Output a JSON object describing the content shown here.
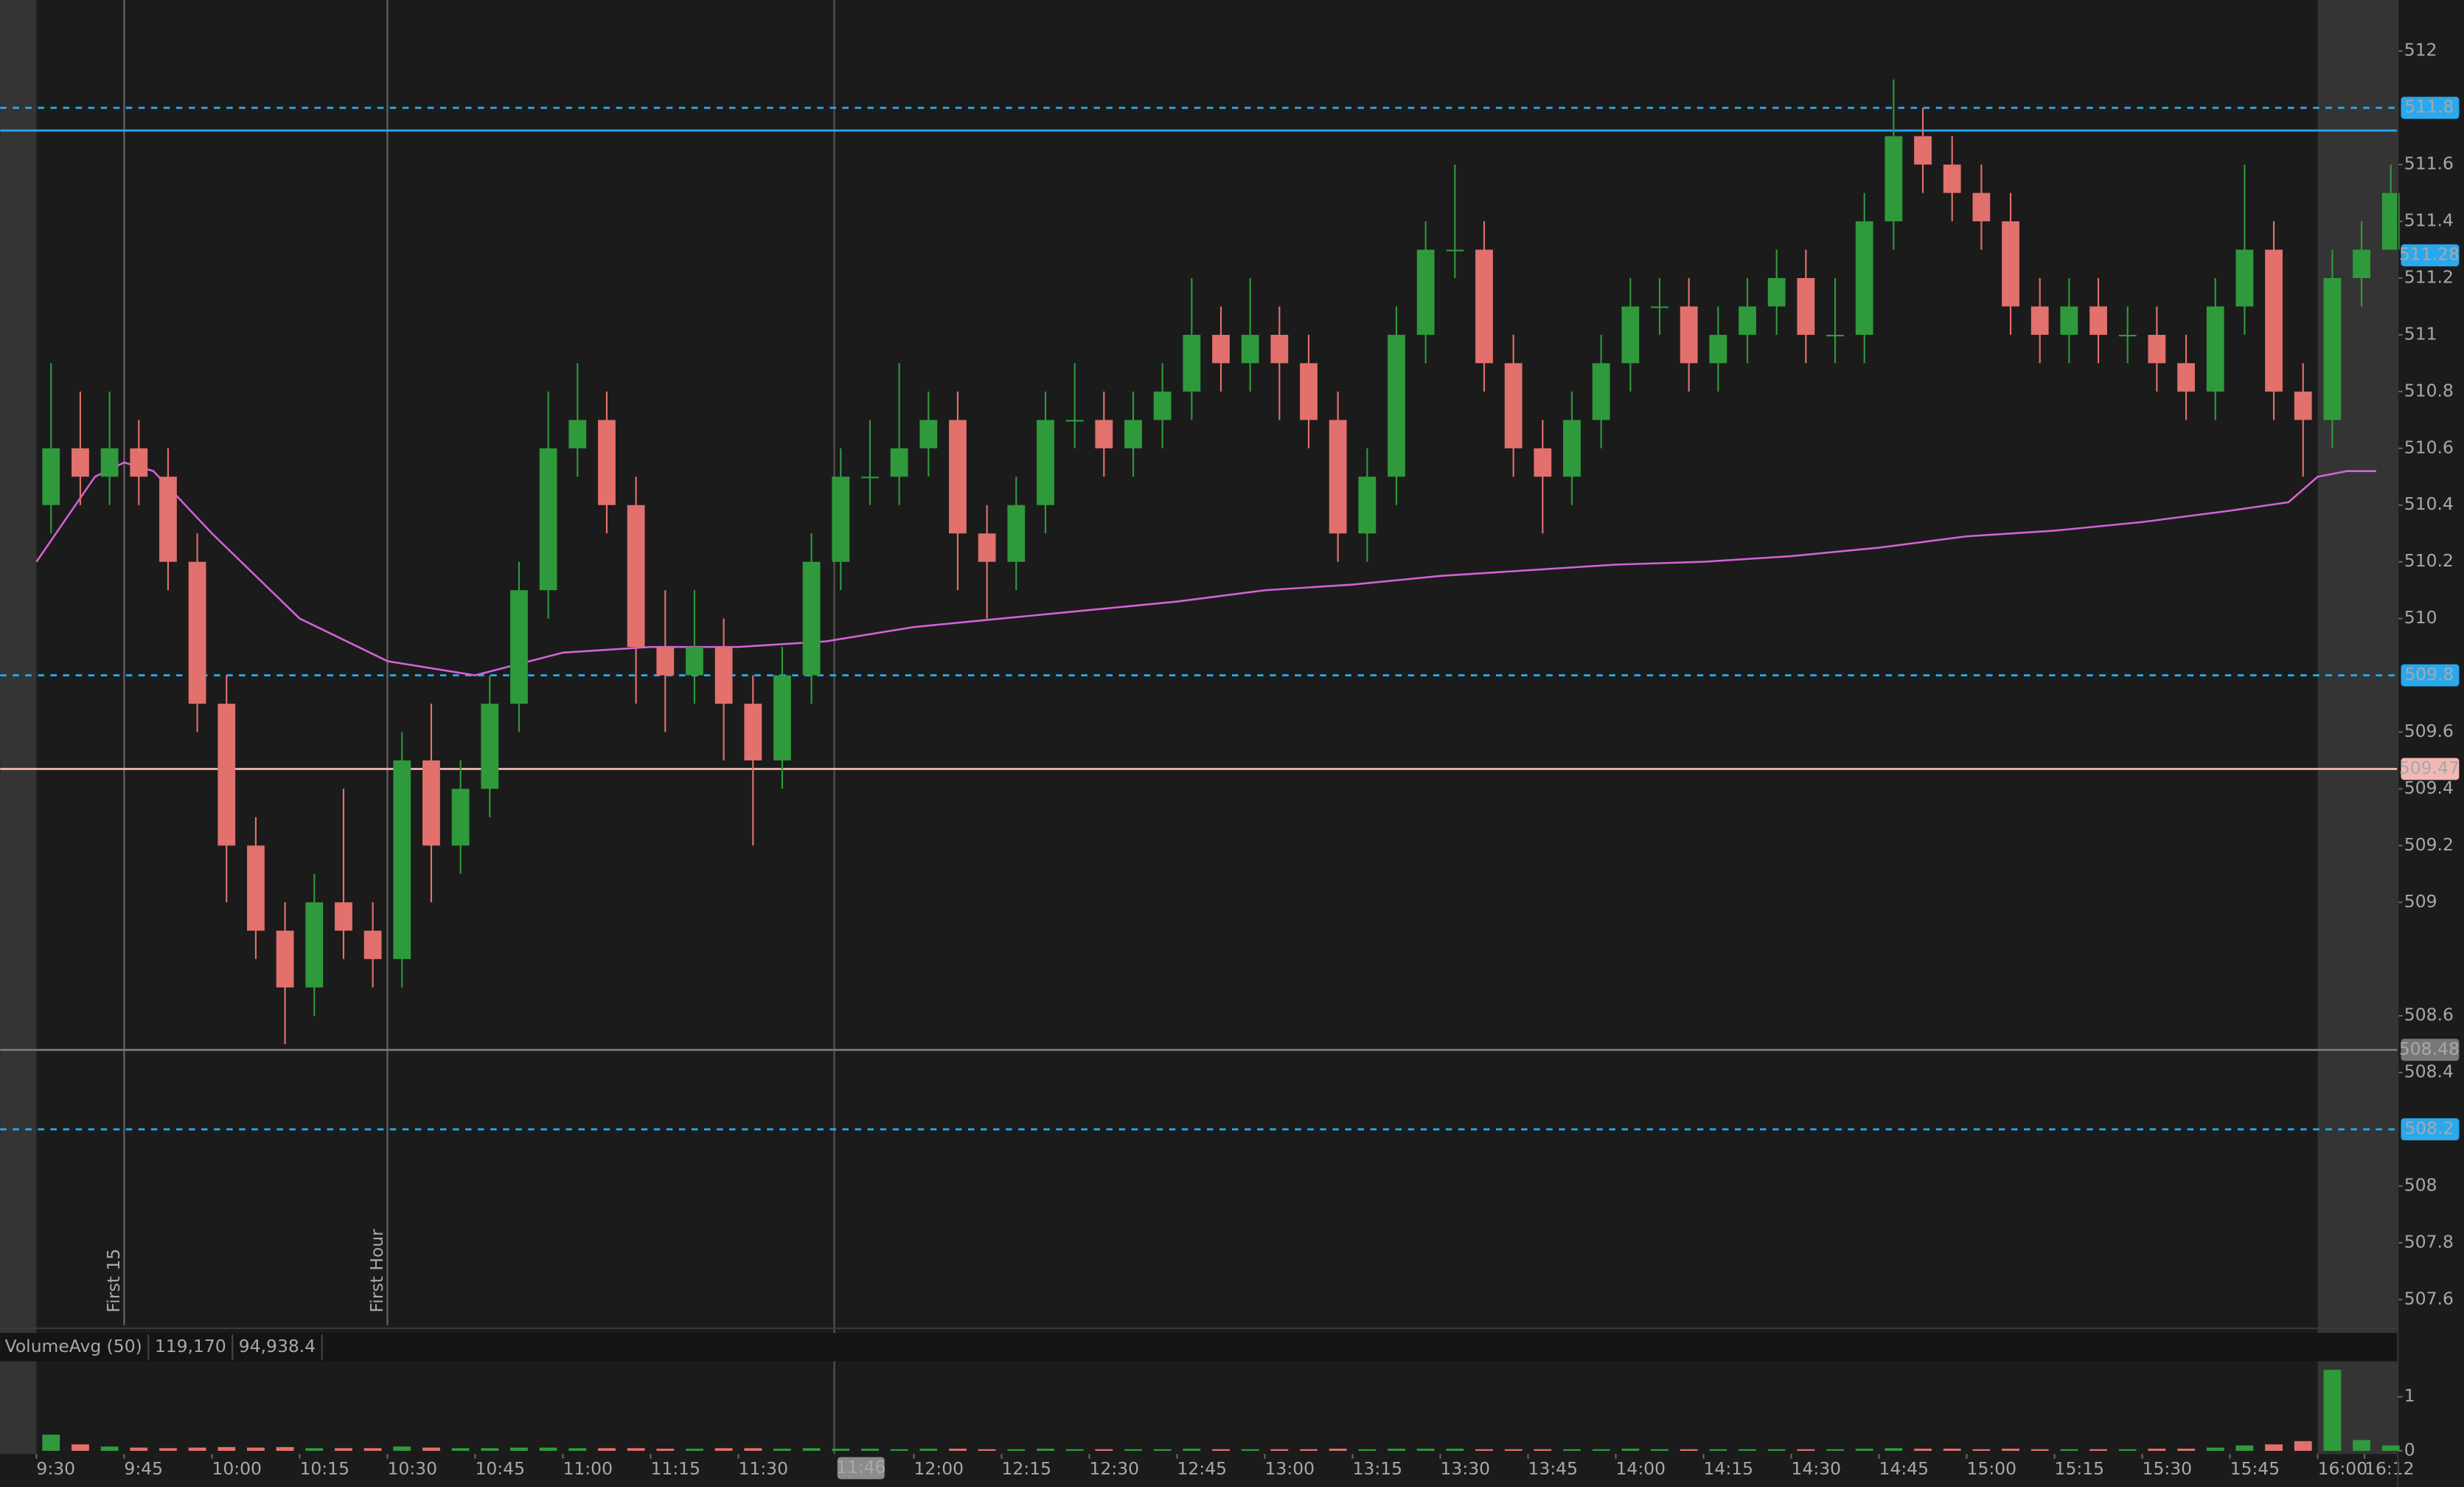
{
  "chart_data": {
    "type": "candlestick",
    "x": [
      0,
      5,
      10,
      15,
      20,
      25,
      30,
      35,
      40,
      45,
      50,
      55,
      60,
      65,
      70,
      75,
      80,
      85,
      90,
      95,
      100,
      105,
      110,
      115,
      120,
      125,
      130,
      135,
      140,
      145,
      150,
      155,
      160,
      165,
      170,
      175,
      180,
      185,
      190,
      195,
      200,
      205,
      210,
      215,
      220,
      225,
      230,
      235,
      240,
      245,
      250,
      255,
      260,
      265,
      270,
      275,
      280,
      285,
      290,
      295,
      300,
      305,
      310,
      315,
      320,
      325,
      330,
      335,
      340,
      345,
      350,
      355,
      360,
      365,
      370,
      375,
      380,
      385,
      390,
      395,
      400
    ],
    "open": [
      510.4,
      510.6,
      510.5,
      510.6,
      510.5,
      510.2,
      509.7,
      509.2,
      508.9,
      508.7,
      509.0,
      508.9,
      508.8,
      509.5,
      509.2,
      509.4,
      509.7,
      510.1,
      510.6,
      510.7,
      510.4,
      509.9,
      509.8,
      509.9,
      509.7,
      509.5,
      509.8,
      510.2,
      510.5,
      510.5,
      510.6,
      510.7,
      510.3,
      510.2,
      510.4,
      510.7,
      510.7,
      510.6,
      510.7,
      510.8,
      511.0,
      510.9,
      511.0,
      510.9,
      510.7,
      510.3,
      510.5,
      511.0,
      511.3,
      511.3,
      510.9,
      510.6,
      510.5,
      510.7,
      510.9,
      511.1,
      511.1,
      510.9,
      511.0,
      511.1,
      511.2,
      511.0,
      511.0,
      511.4,
      511.7,
      511.6,
      511.5,
      511.4,
      511.1,
      511.0,
      511.1,
      511.0,
      511.0,
      510.9,
      510.8,
      511.1,
      511.3,
      510.8,
      510.7,
      511.2,
      511.3
    ],
    "high": [
      510.9,
      510.8,
      510.8,
      510.7,
      510.6,
      510.3,
      509.8,
      509.3,
      509.0,
      509.1,
      509.4,
      509.0,
      509.6,
      509.7,
      509.5,
      509.8,
      510.2,
      510.8,
      510.9,
      510.8,
      510.5,
      510.1,
      510.1,
      510.0,
      509.8,
      509.9,
      510.3,
      510.6,
      510.7,
      510.9,
      510.8,
      510.8,
      510.4,
      510.5,
      510.8,
      510.9,
      510.8,
      510.8,
      510.9,
      511.2,
      511.1,
      511.2,
      511.1,
      511.0,
      510.8,
      510.6,
      511.1,
      511.4,
      511.6,
      511.4,
      511.0,
      510.7,
      510.8,
      511.0,
      511.2,
      511.2,
      511.2,
      511.1,
      511.2,
      511.3,
      511.3,
      511.2,
      511.5,
      511.9,
      511.8,
      511.7,
      511.6,
      511.5,
      511.2,
      511.2,
      511.2,
      511.1,
      511.1,
      511.0,
      511.2,
      511.6,
      511.4,
      510.9,
      511.3,
      511.4,
      511.6
    ],
    "low": [
      510.3,
      510.4,
      510.4,
      510.4,
      510.1,
      509.6,
      509.0,
      508.8,
      508.5,
      508.6,
      508.8,
      508.7,
      508.7,
      509.0,
      509.1,
      509.3,
      509.6,
      510.0,
      510.5,
      510.3,
      509.7,
      509.6,
      509.7,
      509.5,
      509.2,
      509.4,
      509.7,
      510.1,
      510.4,
      510.4,
      510.5,
      510.1,
      510.0,
      510.1,
      510.3,
      510.6,
      510.5,
      510.5,
      510.6,
      510.7,
      510.8,
      510.8,
      510.7,
      510.6,
      510.2,
      510.2,
      510.4,
      510.9,
      511.2,
      510.8,
      510.5,
      510.3,
      510.4,
      510.6,
      510.8,
      511.0,
      510.8,
      510.8,
      510.9,
      511.0,
      510.9,
      510.9,
      510.9,
      511.3,
      511.5,
      511.4,
      511.3,
      511.0,
      510.9,
      510.9,
      510.9,
      510.9,
      510.8,
      510.7,
      510.7,
      511.0,
      510.7,
      510.5,
      510.6,
      511.1,
      511.3
    ],
    "close": [
      510.6,
      510.5,
      510.6,
      510.5,
      510.2,
      509.7,
      509.2,
      508.9,
      508.7,
      509.0,
      508.9,
      508.8,
      509.5,
      509.2,
      509.4,
      509.7,
      510.1,
      510.6,
      510.7,
      510.4,
      509.9,
      509.8,
      509.9,
      509.7,
      509.5,
      509.8,
      510.2,
      510.5,
      510.5,
      510.6,
      510.7,
      510.3,
      510.2,
      510.4,
      510.7,
      510.7,
      510.6,
      510.7,
      510.8,
      511.0,
      510.9,
      511.0,
      510.9,
      510.7,
      510.3,
      510.5,
      511.0,
      511.3,
      511.3,
      510.9,
      510.6,
      510.5,
      510.7,
      510.9,
      511.1,
      511.1,
      510.9,
      511.0,
      511.1,
      511.2,
      511.0,
      511.0,
      511.4,
      511.7,
      511.6,
      511.5,
      511.4,
      511.1,
      511.0,
      511.1,
      511.0,
      511.0,
      510.9,
      510.8,
      511.1,
      511.3,
      510.8,
      510.7,
      511.2,
      511.3,
      511.5
    ],
    "up_color": "#2f9a3c",
    "down_color": "#e2706c",
    "ma": {
      "color": "#d463d8",
      "x": [
        0,
        10,
        15,
        20,
        30,
        45,
        60,
        75,
        90,
        105,
        120,
        135,
        150,
        165,
        180,
        195,
        210,
        225,
        240,
        255,
        270,
        285,
        300,
        315,
        330,
        345,
        360,
        375,
        385,
        390,
        395,
        400
      ],
      "values": [
        510.2,
        510.5,
        510.55,
        510.52,
        510.3,
        510.0,
        509.85,
        509.8,
        509.88,
        509.9,
        509.9,
        509.92,
        509.97,
        510.0,
        510.03,
        510.06,
        510.1,
        510.12,
        510.15,
        510.17,
        510.19,
        510.2,
        510.22,
        510.25,
        510.29,
        510.31,
        510.34,
        510.38,
        510.41,
        510.5,
        510.52,
        510.52
      ]
    },
    "xlim": [
      -6.2,
      403.7
    ],
    "xticks": [
      {
        "value": 0,
        "label": "9:30"
      },
      {
        "value": 15,
        "label": "9:45"
      },
      {
        "value": 30,
        "label": "10:00"
      },
      {
        "value": 45,
        "label": "10:15"
      },
      {
        "value": 60,
        "label": "10:30"
      },
      {
        "value": 75,
        "label": "10:45"
      },
      {
        "value": 90,
        "label": "11:00"
      },
      {
        "value": 105,
        "label": "11:15"
      },
      {
        "value": 120,
        "label": "11:30"
      },
      {
        "value": 150,
        "label": "12:00"
      },
      {
        "value": 165,
        "label": "12:15"
      },
      {
        "value": 180,
        "label": "12:30"
      },
      {
        "value": 195,
        "label": "12:45"
      },
      {
        "value": 210,
        "label": "13:00"
      },
      {
        "value": 225,
        "label": "13:15"
      },
      {
        "value": 240,
        "label": "13:30"
      },
      {
        "value": 255,
        "label": "13:45"
      },
      {
        "value": 270,
        "label": "14:00"
      },
      {
        "value": 285,
        "label": "14:15"
      },
      {
        "value": 300,
        "label": "14:30"
      },
      {
        "value": 315,
        "label": "14:45"
      },
      {
        "value": 330,
        "label": "15:00"
      },
      {
        "value": 345,
        "label": "15:15"
      },
      {
        "value": 360,
        "label": "15:30"
      },
      {
        "value": 375,
        "label": "15:45"
      },
      {
        "value": 390,
        "label": "16:00"
      },
      {
        "value": 398,
        "label": "16:12"
      }
    ],
    "ylim": [
      507.51,
      512.18
    ],
    "yticks": [
      512,
      511.6,
      511.4,
      511.2,
      511,
      510.8,
      510.6,
      510.4,
      510.2,
      510,
      509.6,
      509.4,
      509.2,
      509,
      508.6,
      508.4,
      508,
      507.8,
      507.6
    ],
    "shaded": [
      [
        -6.2,
        0
      ],
      [
        390,
        403.7
      ]
    ],
    "price_lines": [
      {
        "value": 511.8,
        "color": "#29a8ee",
        "style": "dashed",
        "label": true
      },
      {
        "value": 511.72,
        "color": "#29a8ee",
        "style": "solid",
        "label": false
      },
      {
        "value": 511.28,
        "color": "#29a8ee",
        "style": "none",
        "label": true
      },
      {
        "value": 509.8,
        "color": "#29a8ee",
        "style": "dashed",
        "label": true
      },
      {
        "value": 509.47,
        "color": "#f2b8b4",
        "style": "solid",
        "label": true
      },
      {
        "value": 508.48,
        "color": "#777777",
        "style": "solid",
        "label": true
      },
      {
        "value": 508.2,
        "color": "#29a8ee",
        "style": "dashed",
        "label": true
      }
    ],
    "annotations": [
      {
        "x": 15,
        "label": "First 15"
      },
      {
        "x": 60,
        "label": "First Hour"
      }
    ],
    "cursor": {
      "x": 136.4,
      "label": "11:46"
    },
    "volume": {
      "study": "VolumeAvg (50)",
      "readouts": [
        {
          "text": "119,170",
          "color": "#3cc24e"
        },
        {
          "text": "94,938.4",
          "color": "#e8d28a"
        }
      ],
      "ylim": [
        0,
        1.6
      ],
      "yticks": [
        0,
        1
      ],
      "values": [
        0.3,
        0.12,
        0.08,
        0.06,
        0.05,
        0.06,
        0.07,
        0.06,
        0.07,
        0.05,
        0.05,
        0.05,
        0.08,
        0.06,
        0.05,
        0.05,
        0.06,
        0.06,
        0.05,
        0.05,
        0.05,
        0.04,
        0.04,
        0.05,
        0.05,
        0.04,
        0.05,
        0.04,
        0.04,
        0.03,
        0.04,
        0.04,
        0.03,
        0.03,
        0.04,
        0.03,
        0.03,
        0.03,
        0.03,
        0.04,
        0.03,
        0.03,
        0.03,
        0.03,
        0.04,
        0.03,
        0.04,
        0.04,
        0.04,
        0.03,
        0.03,
        0.03,
        0.03,
        0.03,
        0.04,
        0.03,
        0.03,
        0.03,
        0.03,
        0.03,
        0.03,
        0.03,
        0.04,
        0.05,
        0.04,
        0.04,
        0.03,
        0.04,
        0.03,
        0.03,
        0.03,
        0.03,
        0.04,
        0.04,
        0.06,
        0.1,
        0.12,
        0.18,
        1.5,
        0.2,
        0.1
      ]
    }
  }
}
